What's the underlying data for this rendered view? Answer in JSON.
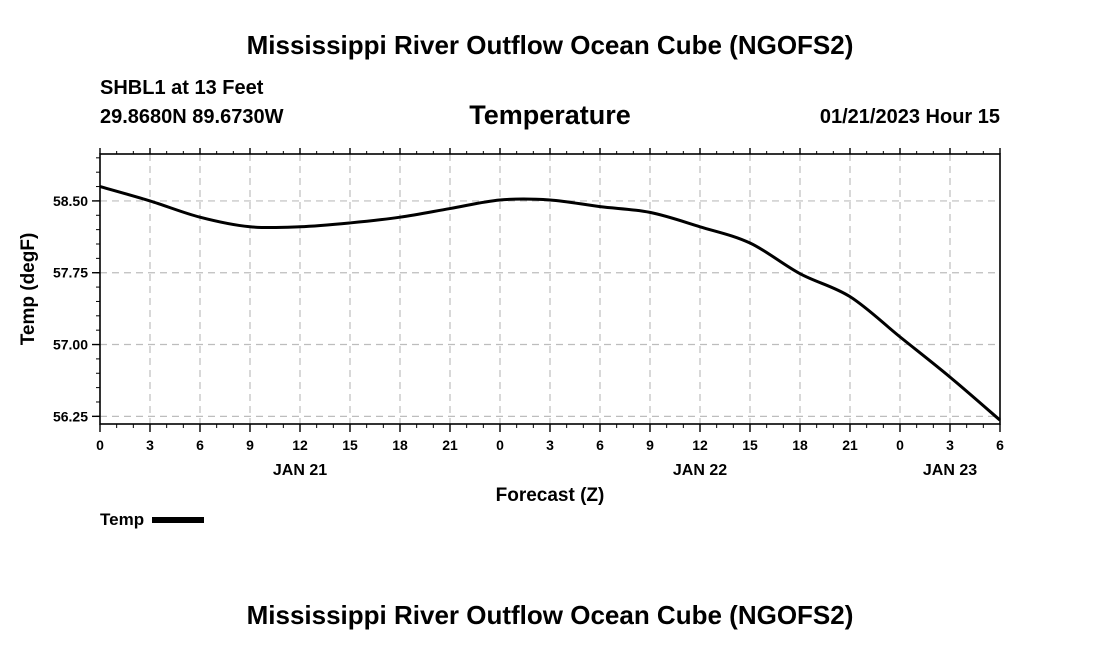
{
  "header": {
    "title": "Mississippi River Outflow Ocean Cube (NGOFS2)",
    "station": "SHBL1 at 13 Feet",
    "coords": "29.8680N  89.6730W",
    "variable": "Temperature",
    "datetime": "01/21/2023 Hour 15"
  },
  "footer": {
    "title": "Mississippi River Outflow Ocean Cube (NGOFS2)"
  },
  "legend": {
    "label": "Temp",
    "color": "#000000"
  },
  "chart_data": {
    "type": "line",
    "title": "Temperature",
    "xlabel": "Forecast (Z)",
    "ylabel": "Temp (degF)",
    "xlim": [
      0,
      54
    ],
    "ylim": [
      56.17,
      58.99
    ],
    "yticks": [
      56.25,
      57.0,
      57.75,
      58.5
    ],
    "ytick_labels": [
      "56.25",
      "57.00",
      "57.75",
      "58.50"
    ],
    "xticks": [
      0,
      3,
      6,
      9,
      12,
      15,
      18,
      21,
      24,
      27,
      30,
      33,
      36,
      39,
      42,
      45,
      48,
      51,
      54
    ],
    "xtick_labels": [
      "0",
      "3",
      "6",
      "9",
      "12",
      "15",
      "18",
      "21",
      "0",
      "3",
      "6",
      "9",
      "12",
      "15",
      "18",
      "21",
      "0",
      "3",
      "6"
    ],
    "day_labels": [
      {
        "x": 12,
        "label": "JAN 21"
      },
      {
        "x": 36,
        "label": "JAN 22"
      },
      {
        "x": 51,
        "label": "JAN 23"
      }
    ],
    "grid": true,
    "legend_position": "bottom-left",
    "series": [
      {
        "name": "Temp",
        "color": "#000000",
        "x": [
          0,
          3,
          6,
          9,
          12,
          15,
          18,
          21,
          24,
          27,
          30,
          33,
          36,
          39,
          42,
          45,
          48,
          51,
          54
        ],
        "values": [
          58.65,
          58.5,
          58.33,
          58.23,
          58.23,
          58.27,
          58.33,
          58.42,
          58.51,
          58.51,
          58.44,
          58.38,
          58.23,
          58.06,
          57.74,
          57.5,
          57.08,
          56.66,
          56.21
        ]
      }
    ]
  }
}
